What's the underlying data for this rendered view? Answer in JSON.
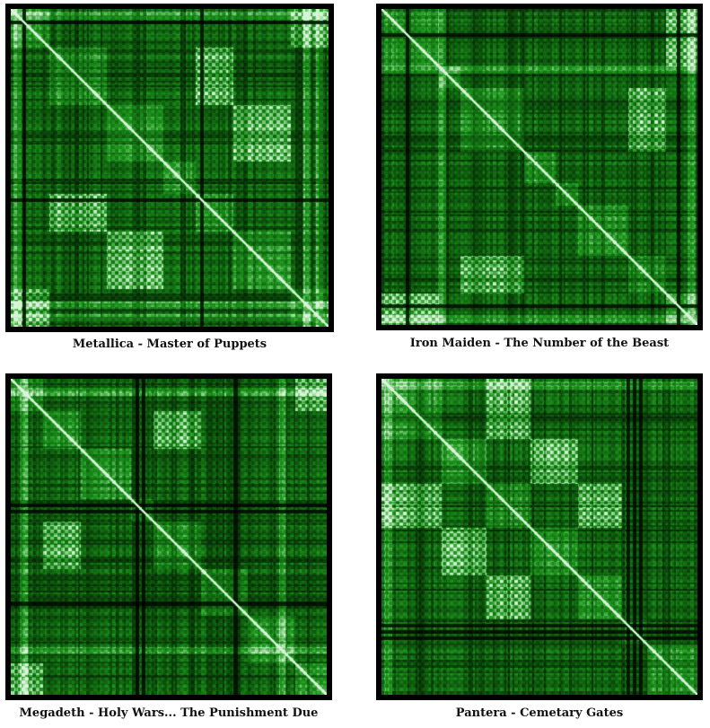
{
  "chart_data": [
    {
      "type": "heatmap",
      "caption": "Metallica - Master of Puppets",
      "colormap": [
        "#000000",
        "#0a4a0a",
        "#1e9a1e",
        "#d8f5d8"
      ],
      "blocks": [
        [
          0.0,
          0.12
        ],
        [
          0.12,
          0.3
        ],
        [
          0.3,
          0.48
        ],
        [
          0.48,
          0.58
        ],
        [
          0.58,
          0.7
        ],
        [
          0.7,
          0.88
        ],
        [
          0.88,
          1.0
        ]
      ],
      "repeats": [
        [
          0.12,
          0.3,
          0.58,
          0.7
        ],
        [
          0.3,
          0.48,
          0.7,
          0.88
        ],
        [
          0.0,
          0.12,
          0.88,
          1.0
        ]
      ],
      "bright_bands": [
        0.02,
        0.93,
        0.97
      ],
      "dark_bands": [
        0.04,
        0.6
      ]
    },
    {
      "type": "heatmap",
      "caption": "Iron Maiden - The Number of the Beast",
      "colormap": [
        "#000000",
        "#0a4a0a",
        "#1e9a1e",
        "#d8f5d8"
      ],
      "blocks": [
        [
          0.0,
          0.18
        ],
        [
          0.18,
          0.25
        ],
        [
          0.25,
          0.45
        ],
        [
          0.45,
          0.55
        ],
        [
          0.55,
          0.62
        ],
        [
          0.62,
          0.78
        ],
        [
          0.78,
          0.9
        ],
        [
          0.9,
          1.0
        ]
      ],
      "repeats": [
        [
          0.25,
          0.45,
          0.78,
          0.9
        ],
        [
          0.0,
          0.18,
          0.9,
          1.0
        ]
      ],
      "bright_bands": [
        0.19,
        0.98
      ],
      "dark_bands": [
        0.08,
        0.94
      ]
    },
    {
      "type": "heatmap",
      "caption": "Megadeth - Holy Wars... The Punishment Due",
      "colormap": [
        "#000000",
        "#0a4a0a",
        "#1e9a1e",
        "#d8f5d8"
      ],
      "blocks": [
        [
          0.0,
          0.1
        ],
        [
          0.1,
          0.22
        ],
        [
          0.22,
          0.38
        ],
        [
          0.38,
          0.45
        ],
        [
          0.45,
          0.6
        ],
        [
          0.6,
          0.75
        ],
        [
          0.75,
          0.9
        ],
        [
          0.9,
          1.0
        ]
      ],
      "repeats": [
        [
          0.1,
          0.22,
          0.45,
          0.6
        ],
        [
          0.0,
          0.1,
          0.9,
          1.0
        ]
      ],
      "bright_bands": [
        0.04,
        0.86
      ],
      "dark_bands": [
        0.4,
        0.42,
        0.71
      ]
    },
    {
      "type": "heatmap",
      "caption": "Pantera - Cemetary Gates",
      "colormap": [
        "#000000",
        "#0a4a0a",
        "#1e9a1e",
        "#d8f5d8"
      ],
      "blocks": [
        [
          0.0,
          0.19
        ],
        [
          0.19,
          0.33
        ],
        [
          0.33,
          0.47
        ],
        [
          0.47,
          0.62
        ],
        [
          0.62,
          0.76
        ],
        [
          0.76,
          0.84
        ],
        [
          0.84,
          1.0
        ]
      ],
      "repeats": [
        [
          0.19,
          0.33,
          0.47,
          0.62
        ],
        [
          0.33,
          0.47,
          0.62,
          0.76
        ],
        [
          0.0,
          0.19,
          0.33,
          0.47
        ]
      ],
      "bright_bands": [
        0.02
      ],
      "dark_bands": [
        0.78,
        0.8,
        0.82
      ]
    }
  ]
}
